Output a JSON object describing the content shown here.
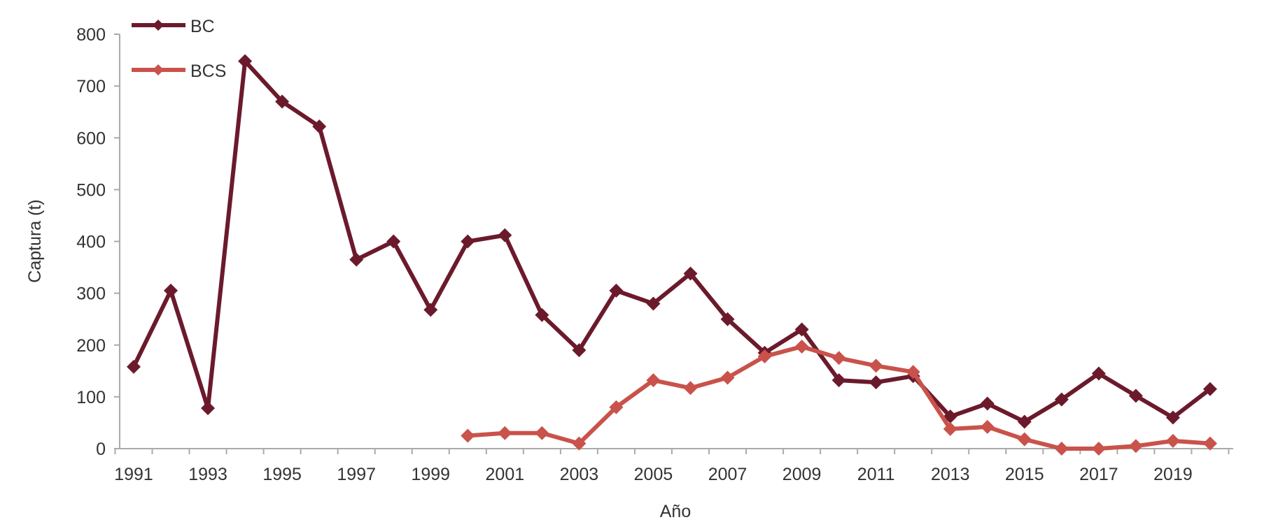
{
  "chart_data": {
    "type": "line",
    "title": "",
    "xlabel": "Año",
    "ylabel": "Captura (t)",
    "ylim": [
      0,
      800
    ],
    "yticks": [
      0,
      100,
      200,
      300,
      400,
      500,
      600,
      700,
      800
    ],
    "xlim": [
      1991,
      2020
    ],
    "xtick_labels": [
      "1991",
      "1993",
      "1995",
      "1997",
      "1999",
      "2001",
      "2003",
      "2005",
      "2007",
      "2009",
      "2011",
      "2013",
      "2015",
      "2017",
      "2019"
    ],
    "legend_position": "top-left",
    "grid": false,
    "series": [
      {
        "name": "BC",
        "color": "#6b1a2c",
        "x": [
          1991,
          1992,
          1993,
          1994,
          1995,
          1996,
          1997,
          1998,
          1999,
          2000,
          2001,
          2002,
          2003,
          2004,
          2005,
          2006,
          2007,
          2008,
          2009,
          2010,
          2011,
          2012,
          2013,
          2014,
          2015,
          2016,
          2017,
          2018,
          2019,
          2020
        ],
        "values": [
          158,
          305,
          78,
          748,
          670,
          622,
          365,
          400,
          268,
          400,
          412,
          258,
          190,
          305,
          280,
          338,
          250,
          185,
          230,
          132,
          128,
          140,
          62,
          87,
          52,
          95,
          145,
          102,
          60,
          115
        ]
      },
      {
        "name": "BCS",
        "color": "#c9524b",
        "x": [
          2000,
          2001,
          2002,
          2003,
          2004,
          2005,
          2006,
          2007,
          2008,
          2009,
          2010,
          2011,
          2012,
          2013,
          2014,
          2015,
          2016,
          2017,
          2018,
          2019,
          2020
        ],
        "values": [
          25,
          30,
          30,
          10,
          80,
          132,
          117,
          137,
          178,
          197,
          175,
          160,
          148,
          38,
          42,
          18,
          0,
          0,
          5,
          15,
          10
        ]
      }
    ]
  }
}
